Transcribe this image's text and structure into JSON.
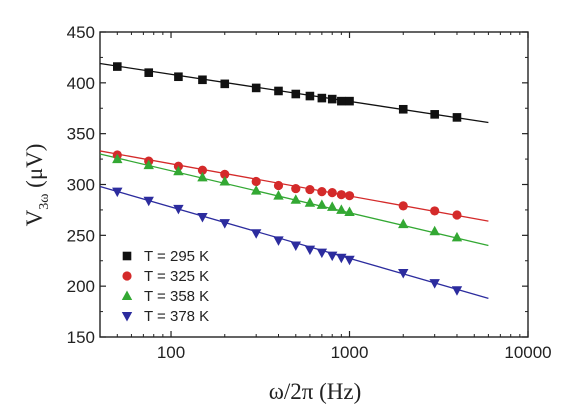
{
  "chart_data": {
    "type": "scatter",
    "xscale": "log",
    "xlabel": "ω/2π (Hz)",
    "ylabel_main": "V",
    "ylabel_sub": "3ω",
    "ylabel_unit": " (μV)",
    "xlim": [
      40,
      10000
    ],
    "ylim": [
      150,
      450
    ],
    "xticks": [
      100,
      1000,
      10000
    ],
    "xtick_labels": [
      "100",
      "1000",
      "10000"
    ],
    "yticks": [
      150,
      200,
      250,
      300,
      350,
      400,
      450
    ],
    "ytick_labels": [
      "150",
      "200",
      "250",
      "300",
      "350",
      "400",
      "450"
    ],
    "grid": false,
    "legend_position": "bottom-left",
    "x": [
      50,
      75,
      110,
      150,
      200,
      300,
      400,
      500,
      600,
      700,
      800,
      900,
      1000,
      2000,
      3000,
      4000
    ],
    "series": [
      {
        "name": "T = 295 K",
        "marker": "square",
        "color": "#111111",
        "values": [
          416,
          410,
          406,
          403,
          399,
          395,
          392,
          389,
          387,
          385,
          384,
          382,
          382,
          374,
          369,
          366
        ],
        "fit": {
          "x": [
            40,
            6000
          ],
          "y": [
            419,
            361
          ]
        }
      },
      {
        "name": "T = 325 K",
        "marker": "circle",
        "color": "#d42a2a",
        "values": [
          329,
          323,
          318,
          314,
          310,
          303,
          299,
          296,
          295,
          293,
          292,
          290,
          289,
          279,
          274,
          270
        ],
        "fit": {
          "x": [
            40,
            6000
          ],
          "y": [
            333,
            264
          ]
        }
      },
      {
        "name": "T = 358 K",
        "marker": "triangle-up",
        "color": "#33a833",
        "values": [
          325,
          319,
          313,
          307,
          303,
          294,
          289,
          285,
          282,
          280,
          278,
          275,
          273,
          261,
          254,
          248
        ],
        "fit": {
          "x": [
            40,
            6000
          ],
          "y": [
            330,
            240
          ]
        }
      },
      {
        "name": "T = 378 K",
        "marker": "triangle-down",
        "color": "#2c2c9e",
        "values": [
          293,
          284,
          276,
          268,
          262,
          252,
          245,
          240,
          236,
          233,
          230,
          228,
          226,
          213,
          203,
          196
        ],
        "fit": {
          "x": [
            40,
            6000
          ],
          "y": [
            298,
            188
          ]
        }
      }
    ]
  }
}
